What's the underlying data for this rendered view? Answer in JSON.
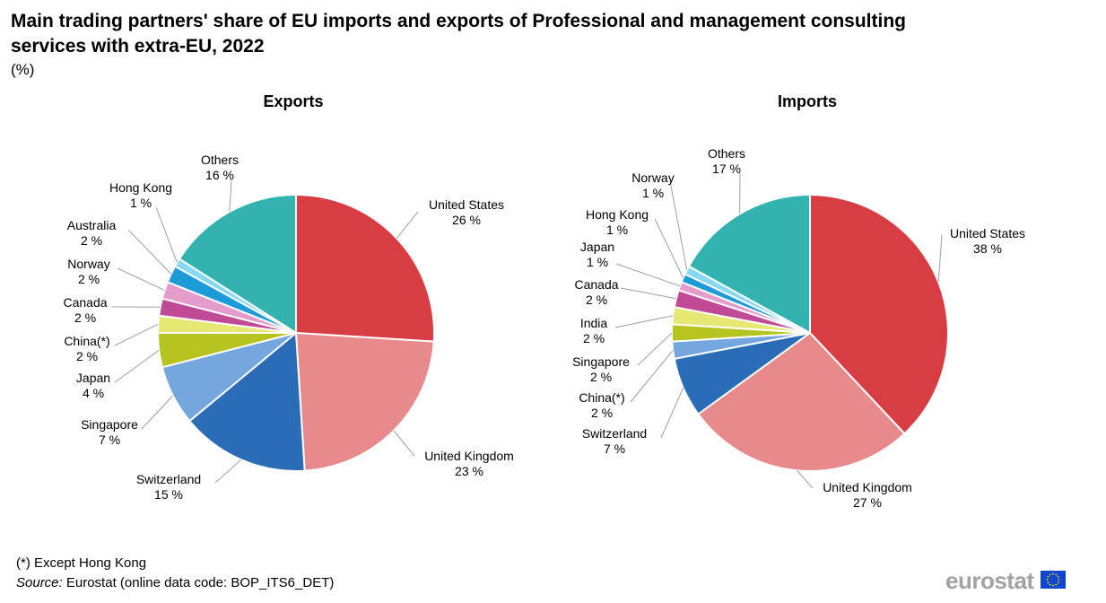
{
  "title": "Main trading partners' share of EU imports and exports of Professional and management consulting services with extra-EU, 2022",
  "unit": "(%)",
  "footnote": "(*) Except Hong Kong",
  "source_label": "Source:",
  "source_text": " Eurostat (online data code: BOP_ITS6_DET)",
  "logo_text": "eurostat",
  "chart_data": [
    {
      "type": "pie",
      "title": "Exports",
      "slices": [
        {
          "label": "United States",
          "value": 26,
          "value_label": "26 %",
          "color": "#d73d42"
        },
        {
          "label": "United Kingdom",
          "value": 23,
          "value_label": "23 %",
          "color": "#e88a8c"
        },
        {
          "label": "Switzerland",
          "value": 15,
          "value_label": "15 %",
          "color": "#2a6cb5"
        },
        {
          "label": "Singapore",
          "value": 7,
          "value_label": "7 %",
          "color": "#73a7dd"
        },
        {
          "label": "Japan",
          "value": 4,
          "value_label": "4 %",
          "color": "#b5c41e"
        },
        {
          "label": "China(*)",
          "value": 2,
          "value_label": "2 %",
          "color": "#e5e873"
        },
        {
          "label": "Canada",
          "value": 2,
          "value_label": "2 %",
          "color": "#c04a96"
        },
        {
          "label": "Norway",
          "value": 2,
          "value_label": "2 %",
          "color": "#e39ccb"
        },
        {
          "label": "Australia",
          "value": 2,
          "value_label": "2 %",
          "color": "#1c9bd8"
        },
        {
          "label": "Hong Kong",
          "value": 1,
          "value_label": "1 %",
          "color": "#86d8f5"
        },
        {
          "label": "Others",
          "value": 16,
          "value_label": "16 %",
          "color": "#33b3b0"
        }
      ]
    },
    {
      "type": "pie",
      "title": "Imports",
      "slices": [
        {
          "label": "United States",
          "value": 38,
          "value_label": "38 %",
          "color": "#d73d42"
        },
        {
          "label": "United Kingdom",
          "value": 27,
          "value_label": "27 %",
          "color": "#e88a8c"
        },
        {
          "label": "Switzerland",
          "value": 7,
          "value_label": "7 %",
          "color": "#2a6cb5"
        },
        {
          "label": "China(*)",
          "value": 2,
          "value_label": "2 %",
          "color": "#73a7dd"
        },
        {
          "label": "Singapore",
          "value": 2,
          "value_label": "2 %",
          "color": "#b5c41e"
        },
        {
          "label": "India",
          "value": 2,
          "value_label": "2 %",
          "color": "#e5e873"
        },
        {
          "label": "Canada",
          "value": 2,
          "value_label": "2 %",
          "color": "#c04a96"
        },
        {
          "label": "Japan",
          "value": 1,
          "value_label": "1 %",
          "color": "#e39ccb"
        },
        {
          "label": "Hong Kong",
          "value": 1,
          "value_label": "1 %",
          "color": "#1c9bd8"
        },
        {
          "label": "Norway",
          "value": 1,
          "value_label": "1 %",
          "color": "#86d8f5"
        },
        {
          "label": "Others",
          "value": 17,
          "value_label": "17 %",
          "color": "#33b3b0"
        }
      ]
    }
  ]
}
